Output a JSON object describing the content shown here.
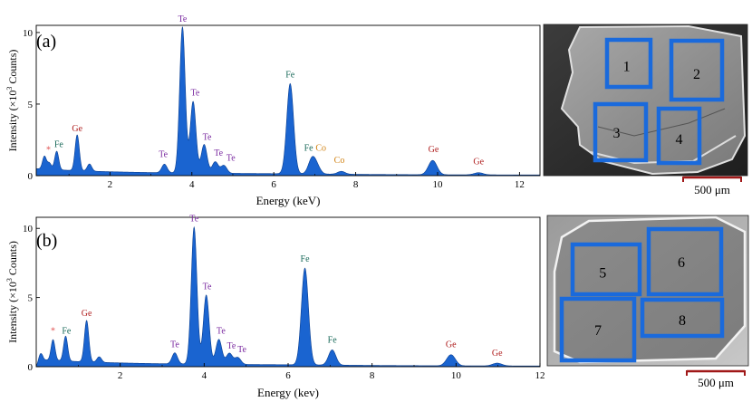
{
  "chart_data": [
    {
      "type": "area",
      "panel_label": "(a)",
      "xlabel": "Energy (keV)",
      "ylabel_parts": [
        "Intensity (×10",
        "3",
        " Counts)"
      ],
      "xlim": [
        0.2,
        12.5
      ],
      "ylim": [
        0,
        10.5
      ],
      "xticks": [
        2,
        4,
        6,
        8,
        10,
        12
      ],
      "yticks": [
        0,
        5,
        10
      ],
      "fill_color": "#1a64d0",
      "peaks": [
        {
          "x": 0.4,
          "y": 0.9
        },
        {
          "x": 0.52,
          "y": 0.45
        },
        {
          "x": 0.7,
          "y": 1.3
        },
        {
          "x": 1.2,
          "y": 2.5
        },
        {
          "x": 1.5,
          "y": 0.5
        },
        {
          "x": 3.33,
          "y": 0.6
        },
        {
          "x": 3.77,
          "y": 10.2
        },
        {
          "x": 4.03,
          "y": 5.0
        },
        {
          "x": 4.3,
          "y": 2.0
        },
        {
          "x": 4.57,
          "y": 0.8
        },
        {
          "x": 4.78,
          "y": 0.55
        },
        {
          "x": 6.4,
          "y": 6.3
        },
        {
          "x": 6.93,
          "y": 1.0
        },
        {
          "x": 7.05,
          "y": 0.5
        },
        {
          "x": 7.65,
          "y": 0.2
        },
        {
          "x": 9.88,
          "y": 1.0
        },
        {
          "x": 11.0,
          "y": 0.15
        }
      ],
      "annotations": [
        {
          "text": "*",
          "x": 0.5,
          "y": 1.6,
          "color": "#e05050"
        },
        {
          "text": "Fe",
          "x": 0.75,
          "y": 2.0,
          "color": "#1a6a5a"
        },
        {
          "text": "Ge",
          "x": 1.2,
          "y": 3.1,
          "color": "#b02020"
        },
        {
          "text": "Te",
          "x": 3.3,
          "y": 1.3,
          "color": "#7a2aa0"
        },
        {
          "text": "Te",
          "x": 3.77,
          "y": 10.75,
          "color": "#7a2aa0"
        },
        {
          "text": "Te",
          "x": 4.08,
          "y": 5.6,
          "color": "#7a2aa0"
        },
        {
          "text": "Te",
          "x": 4.37,
          "y": 2.5,
          "color": "#7a2aa0"
        },
        {
          "text": "Te",
          "x": 4.65,
          "y": 1.4,
          "color": "#7a2aa0"
        },
        {
          "text": "Te",
          "x": 4.95,
          "y": 1.05,
          "color": "#7a2aa0"
        },
        {
          "text": "Fe",
          "x": 6.4,
          "y": 6.85,
          "color": "#1a6a5a"
        },
        {
          "text": "Fe",
          "x": 6.85,
          "y": 1.75,
          "color": "#1a6a5a"
        },
        {
          "text": "Co",
          "x": 7.15,
          "y": 1.75,
          "color": "#d08010"
        },
        {
          "text": "Co",
          "x": 7.6,
          "y": 0.9,
          "color": "#d08010"
        },
        {
          "text": "Ge",
          "x": 9.9,
          "y": 1.65,
          "color": "#b02020"
        },
        {
          "text": "Ge",
          "x": 11.0,
          "y": 0.8,
          "color": "#b02020"
        }
      ]
    },
    {
      "type": "area",
      "panel_label": "(b)",
      "xlabel": "Energy (kev)",
      "ylabel_parts": [
        "Intensity (×10",
        "3",
        " Counts)"
      ],
      "xlim": [
        0,
        12
      ],
      "ylim": [
        0,
        10.8
      ],
      "xticks": [
        2,
        4,
        6,
        8,
        10,
        12
      ],
      "yticks": [
        0,
        5,
        10
      ],
      "fill_color": "#1a64d0",
      "peaks": [
        {
          "x": 0.1,
          "y": 0.6
        },
        {
          "x": 0.4,
          "y": 1.5
        },
        {
          "x": 0.7,
          "y": 1.8
        },
        {
          "x": 1.2,
          "y": 3.0
        },
        {
          "x": 1.5,
          "y": 0.4
        },
        {
          "x": 3.3,
          "y": 0.8
        },
        {
          "x": 3.76,
          "y": 9.9
        },
        {
          "x": 4.05,
          "y": 5.0
        },
        {
          "x": 4.35,
          "y": 1.8
        },
        {
          "x": 4.6,
          "y": 0.8
        },
        {
          "x": 4.8,
          "y": 0.5
        },
        {
          "x": 6.4,
          "y": 7.0
        },
        {
          "x": 7.05,
          "y": 1.1
        },
        {
          "x": 9.88,
          "y": 0.8
        },
        {
          "x": 10.98,
          "y": 0.2
        }
      ],
      "annotations": [
        {
          "text": "*",
          "x": 0.4,
          "y": 2.4,
          "color": "#e05050"
        },
        {
          "text": "Fe",
          "x": 0.72,
          "y": 2.4,
          "color": "#1a6a5a"
        },
        {
          "text": "Ge",
          "x": 1.2,
          "y": 3.65,
          "color": "#b02020"
        },
        {
          "text": "Te",
          "x": 3.3,
          "y": 1.4,
          "color": "#7a2aa0"
        },
        {
          "text": "Te",
          "x": 3.76,
          "y": 10.5,
          "color": "#7a2aa0"
        },
        {
          "text": "Te",
          "x": 4.07,
          "y": 5.6,
          "color": "#7a2aa0"
        },
        {
          "text": "Te",
          "x": 4.4,
          "y": 2.4,
          "color": "#7a2aa0"
        },
        {
          "text": "Te",
          "x": 4.65,
          "y": 1.3,
          "color": "#7a2aa0"
        },
        {
          "text": "Te",
          "x": 4.9,
          "y": 1.05,
          "color": "#7a2aa0"
        },
        {
          "text": "Fe",
          "x": 6.4,
          "y": 7.6,
          "color": "#1a6a5a"
        },
        {
          "text": "Fe",
          "x": 7.05,
          "y": 1.75,
          "color": "#1a6a5a"
        },
        {
          "text": "Ge",
          "x": 9.88,
          "y": 1.4,
          "color": "#b02020"
        },
        {
          "text": "Ge",
          "x": 10.98,
          "y": 0.8,
          "color": "#b02020"
        }
      ]
    }
  ],
  "micrographs": [
    {
      "regions": [
        {
          "label": "1"
        },
        {
          "label": "2"
        },
        {
          "label": "3"
        },
        {
          "label": "4"
        }
      ],
      "scale_bar_label": "500 μm",
      "box_color": "#1a6adc",
      "scale_bar_color": "#a01818"
    },
    {
      "regions": [
        {
          "label": "5"
        },
        {
          "label": "6"
        },
        {
          "label": "7"
        },
        {
          "label": "8"
        }
      ],
      "scale_bar_label": "500 μm",
      "box_color": "#1a6adc",
      "scale_bar_color": "#a01818"
    }
  ]
}
